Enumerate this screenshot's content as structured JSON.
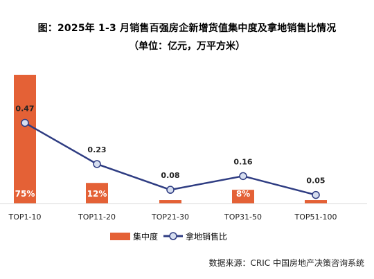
{
  "chart_data": {
    "type": "bar",
    "title": "图：2025年 1-3 月销售百强房企新增货值集中度及拿地销售比情况",
    "subtitle": "（单位：亿元，万平方米）",
    "categories": [
      "TOP1-10",
      "TOP11-20",
      "TOP21-30",
      "TOP31-50",
      "TOP51-100"
    ],
    "series": [
      {
        "name": "集中度",
        "type": "bar",
        "color": "#E46136",
        "values": [
          75,
          12,
          2,
          8,
          2
        ],
        "labels": [
          "75%",
          "12%",
          "",
          "8%",
          ""
        ]
      },
      {
        "name": "拿地销售比",
        "type": "line",
        "color": "#2E3C82",
        "values": [
          0.47,
          0.23,
          0.08,
          0.16,
          0.05
        ],
        "labels": [
          "0.47",
          "0.23",
          "0.08",
          "0.16",
          "0.05"
        ]
      }
    ],
    "grid": false,
    "legend": "bottom"
  },
  "source": "数据来源：CRIC 中国房地产决策咨询系统"
}
